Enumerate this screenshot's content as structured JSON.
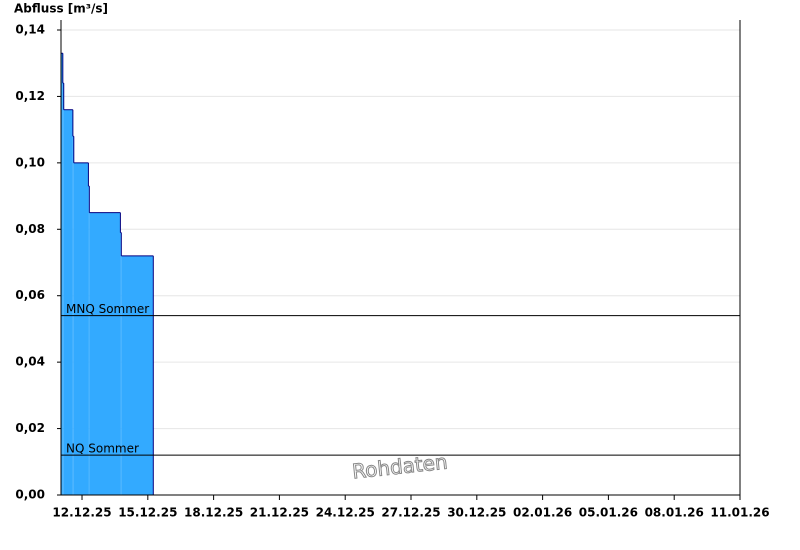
{
  "chart_data": {
    "type": "step-area",
    "title": "Abfluss [m³/s]",
    "x": [
      "2025-12-11T01:00",
      "2025-12-11T03:00",
      "2025-12-11T04:00",
      "2025-12-11T14:00",
      "2025-12-11T15:00",
      "2025-12-12T07:00",
      "2025-12-12T08:00",
      "2025-12-13T18:00",
      "2025-12-13T19:00",
      "2025-12-15T06:00"
    ],
    "values": [
      0.133,
      0.124,
      0.116,
      0.108,
      0.1,
      0.093,
      0.085,
      0.079,
      0.072,
      0.072
    ],
    "color": "#33aaff",
    "line_color": "#000080",
    "xlim": [
      "2025-12-11T01:00",
      "2026-01-11T00:00"
    ],
    "xticks": [
      {
        "value": "2025-12-12T00:00",
        "label": "12.12.25"
      },
      {
        "value": "2025-12-15T00:00",
        "label": "15.12.25"
      },
      {
        "value": "2025-12-18T00:00",
        "label": "18.12.25"
      },
      {
        "value": "2025-12-21T00:00",
        "label": "21.12.25"
      },
      {
        "value": "2025-12-24T00:00",
        "label": "24.12.25"
      },
      {
        "value": "2025-12-27T00:00",
        "label": "27.12.25"
      },
      {
        "value": "2025-12-30T00:00",
        "label": "30.12.25"
      },
      {
        "value": "2026-01-02T00:00",
        "label": "02.01.26"
      },
      {
        "value": "2026-01-05T00:00",
        "label": "05.01.26"
      },
      {
        "value": "2026-01-08T00:00",
        "label": "08.01.26"
      },
      {
        "value": "2026-01-11T00:00",
        "label": "11.01.26"
      }
    ],
    "ylim": [
      0,
      0.14
    ],
    "yticks": [
      {
        "value": 0,
        "label": "0,00"
      },
      {
        "value": 0.02,
        "label": "0,02"
      },
      {
        "value": 0.04,
        "label": "0,04"
      },
      {
        "value": 0.06,
        "label": "0,06"
      },
      {
        "value": 0.08,
        "label": "0,08"
      },
      {
        "value": 0.1,
        "label": "0,10"
      },
      {
        "value": 0.12,
        "label": "0,12"
      },
      {
        "value": 0.14,
        "label": "0,14"
      }
    ],
    "grid": true,
    "reference_lines": [
      {
        "label": "MNQ Sommer",
        "value": 0.054
      },
      {
        "label": "NQ Sommer",
        "value": 0.012
      }
    ],
    "watermark": "Rohdaten"
  }
}
